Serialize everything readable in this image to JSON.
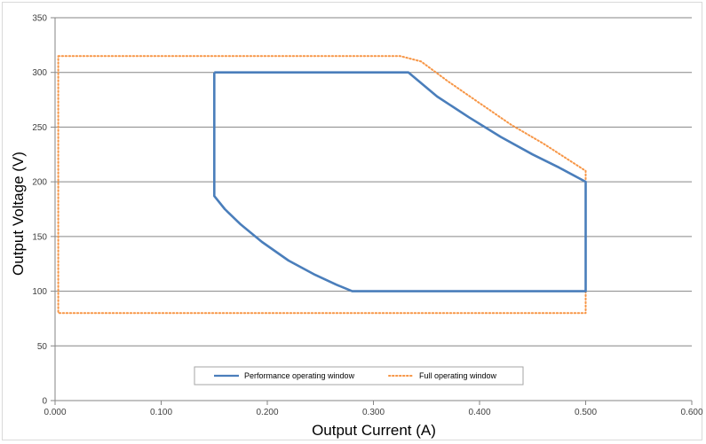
{
  "chart_data": {
    "type": "line",
    "xlabel": "Output Current (A)",
    "ylabel": "Output Voltage (V)",
    "xlim": [
      0,
      0.6
    ],
    "ylim": [
      0,
      350
    ],
    "x_ticks": [
      0,
      0.1,
      0.2,
      0.3,
      0.4,
      0.5,
      0.6
    ],
    "x_tick_labels": [
      "0.000",
      "0.100",
      "0.200",
      "0.300",
      "0.400",
      "0.500",
      "0.600"
    ],
    "y_ticks": [
      0,
      50,
      100,
      150,
      200,
      250,
      300,
      350
    ],
    "y_tick_labels": [
      "0",
      "50",
      "100",
      "150",
      "200",
      "250",
      "300",
      "350"
    ],
    "grid": "horizontal",
    "legend_position": "bottom-center",
    "series": [
      {
        "name": "Performance operating window",
        "color": "#4a7ebb",
        "style": "solid",
        "points": [
          [
            0.15,
            300
          ],
          [
            0.333,
            300
          ],
          [
            0.36,
            278
          ],
          [
            0.39,
            259
          ],
          [
            0.42,
            241
          ],
          [
            0.45,
            225
          ],
          [
            0.475,
            213
          ],
          [
            0.5,
            200
          ],
          [
            0.5,
            100
          ],
          [
            0.28,
            100
          ],
          [
            0.265,
            106
          ],
          [
            0.245,
            115
          ],
          [
            0.22,
            128
          ],
          [
            0.195,
            145
          ],
          [
            0.175,
            161
          ],
          [
            0.16,
            175
          ],
          [
            0.15,
            187
          ],
          [
            0.15,
            300
          ]
        ]
      },
      {
        "name": "Full operating window",
        "color": "#f79646",
        "style": "dotted",
        "points": [
          [
            0.003,
            315
          ],
          [
            0.325,
            315
          ],
          [
            0.345,
            310
          ],
          [
            0.37,
            292
          ],
          [
            0.4,
            272
          ],
          [
            0.43,
            252
          ],
          [
            0.46,
            235
          ],
          [
            0.5,
            210
          ],
          [
            0.5,
            80
          ],
          [
            0.003,
            80
          ],
          [
            0.003,
            315
          ]
        ]
      }
    ]
  }
}
